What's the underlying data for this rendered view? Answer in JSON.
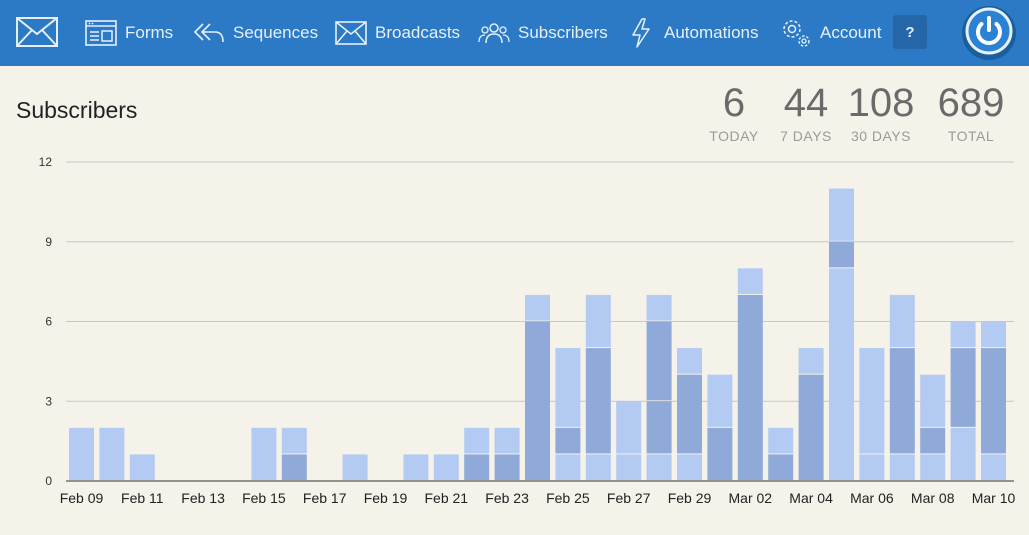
{
  "nav": {
    "items": [
      {
        "key": "forms",
        "label": "Forms",
        "icon": "form-window-icon"
      },
      {
        "key": "sequences",
        "label": "Sequences",
        "icon": "reply-arrows-icon"
      },
      {
        "key": "broadcasts",
        "label": "Broadcasts",
        "icon": "envelope-icon"
      },
      {
        "key": "subscribers",
        "label": "Subscribers",
        "icon": "people-icon"
      },
      {
        "key": "automations",
        "label": "Automations",
        "icon": "lightning-bolt-icon"
      },
      {
        "key": "account",
        "label": "Account",
        "icon": "gears-icon"
      }
    ],
    "help_label": "?",
    "colors": {
      "navbar": "#2c7ac6",
      "text": "#e6f0fb"
    }
  },
  "page": {
    "title": "Subscribers"
  },
  "stats": [
    {
      "value": "6",
      "label": "TODAY"
    },
    {
      "value": "44",
      "label": "7 DAYS"
    },
    {
      "value": "108",
      "label": "30 DAYS"
    },
    {
      "value": "689",
      "label": "TOTAL"
    }
  ],
  "chart_data": {
    "type": "bar",
    "stacked": true,
    "ylim": [
      0,
      12
    ],
    "yticks": [
      0,
      3,
      6,
      9,
      12
    ],
    "grid": true,
    "categories": [
      "Feb 09",
      "Feb 10",
      "Feb 11",
      "Feb 12",
      "Feb 13",
      "Feb 14",
      "Feb 15",
      "Feb 16",
      "Feb 17",
      "Feb 18",
      "Feb 19",
      "Feb 20",
      "Feb 21",
      "Feb 22",
      "Feb 23",
      "Feb 24",
      "Feb 25",
      "Feb 26",
      "Feb 27",
      "Feb 28",
      "Feb 29",
      "Mar 01",
      "Mar 02",
      "Mar 03",
      "Mar 04",
      "Mar 05",
      "Mar 06",
      "Mar 07",
      "Mar 08",
      "Mar 09",
      "Mar 10"
    ],
    "xtick_labels": [
      "Feb 09",
      "Feb 11",
      "Feb 13",
      "Feb 15",
      "Feb 17",
      "Feb 19",
      "Feb 21",
      "Feb 23",
      "Feb 25",
      "Feb 27",
      "Feb 29",
      "Mar 02",
      "Mar 04",
      "Mar 06",
      "Mar 08",
      "Mar 10"
    ],
    "segments": [
      [
        2
      ],
      [
        2
      ],
      [
        1
      ],
      [],
      [],
      [],
      [
        2
      ],
      [
        1,
        1
      ],
      [],
      [
        1
      ],
      [],
      [
        1
      ],
      [
        1
      ],
      [
        1,
        1
      ],
      [
        1,
        1
      ],
      [
        6,
        1
      ],
      [
        1,
        1,
        3
      ],
      [
        1,
        4,
        2
      ],
      [
        1,
        2
      ],
      [
        1,
        2,
        3,
        1
      ],
      [
        1,
        3,
        1
      ],
      [
        2,
        2
      ],
      [
        7,
        1
      ],
      [
        1,
        1
      ],
      [
        4,
        1
      ],
      [
        8,
        1,
        2
      ],
      [
        1,
        4
      ],
      [
        1,
        4,
        2
      ],
      [
        1,
        1,
        2
      ],
      [
        2,
        3,
        1
      ],
      [
        1,
        4,
        1
      ]
    ],
    "colors": {
      "light": "#b3caf2",
      "mid": "#a4bce8",
      "dark": "#8fa9d8",
      "grid": "#c8c8c8"
    }
  }
}
